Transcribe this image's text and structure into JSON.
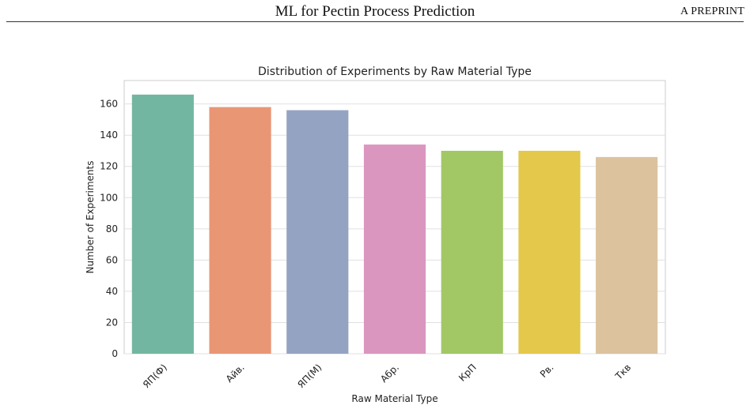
{
  "header": {
    "running_title": "ML for Pectin Process Prediction",
    "preprint_label": "A PREPRINT"
  },
  "colors": {
    "bars": [
      "#72b6a1",
      "#e99675",
      "#95a3c3",
      "#db96c0",
      "#a2c865",
      "#e3c84b",
      "#dcc39e"
    ],
    "grid": "#e0e0e0",
    "frame": "#cccccc"
  },
  "chart_data": {
    "type": "bar",
    "title": "Distribution of Experiments by Raw Material Type",
    "xlabel": "Raw Material Type",
    "ylabel": "Number of Experiments",
    "categories": [
      "ЯП(Ф)",
      "Айв.",
      "ЯП(М)",
      "Абр.",
      "КрП",
      "Рв.",
      "Ткв"
    ],
    "values": [
      166,
      158,
      156,
      134,
      130,
      130,
      126
    ],
    "ylim": [
      0,
      175
    ],
    "yticks": [
      0,
      20,
      40,
      60,
      80,
      100,
      120,
      140,
      160
    ],
    "grid": true,
    "legend": "none"
  }
}
